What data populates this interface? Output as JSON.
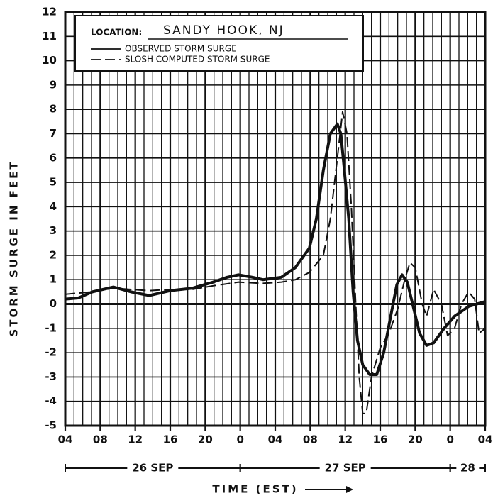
{
  "chart_data": {
    "type": "line",
    "legend": {
      "location_label": "LOCATION:",
      "location": "SANDY HOOK, NJ"
    },
    "xlabel": "TIME (EST)",
    "ylabel": "STORM SURGE IN FEET",
    "xlim": [
      0,
      48
    ],
    "ylim": [
      -5,
      12
    ],
    "xticks": [
      {
        "value": 0,
        "label": "04"
      },
      {
        "value": 4,
        "label": "08"
      },
      {
        "value": 8,
        "label": "12"
      },
      {
        "value": 12,
        "label": "16"
      },
      {
        "value": 16,
        "label": "20"
      },
      {
        "value": 20,
        "label": "0"
      },
      {
        "value": 24,
        "label": "04"
      },
      {
        "value": 28,
        "label": "08"
      },
      {
        "value": 32,
        "label": "12"
      },
      {
        "value": 36,
        "label": "16"
      },
      {
        "value": 40,
        "label": "20"
      },
      {
        "value": 44,
        "label": "0"
      },
      {
        "value": 48,
        "label": "04"
      }
    ],
    "xminorticks": [
      1,
      2,
      3,
      5,
      6,
      7,
      9,
      10,
      11,
      13,
      14,
      15,
      17,
      18,
      19,
      21,
      22,
      23,
      25,
      26,
      27,
      29,
      30,
      31,
      33,
      34,
      35,
      37,
      38,
      39,
      41,
      42,
      43,
      45,
      46,
      47
    ],
    "yticks": [
      -5,
      -4,
      -3,
      -2,
      -1,
      0,
      1,
      2,
      3,
      4,
      5,
      6,
      7,
      8,
      9,
      10,
      11,
      12
    ],
    "grid": true,
    "date_spans": [
      {
        "label": "26 SEP",
        "from": 0,
        "to": 20
      },
      {
        "label": "27 SEP",
        "from": 20,
        "to": 44
      },
      {
        "label": "28",
        "from": 44,
        "to": 48
      }
    ],
    "series": [
      {
        "name": "OBSERVED STORM SURGE",
        "color": "#111111",
        "dash": false,
        "x": [
          0,
          1.5,
          3.1,
          5.5,
          7.5,
          9.6,
          12.0,
          14.5,
          16.9,
          18.5,
          19.8,
          21.4,
          22.6,
          24.7,
          26.3,
          27.9,
          28.7,
          29.5,
          30.3,
          31.1,
          31.5,
          31.9,
          32.4,
          32.9,
          33.4,
          34.0,
          34.8,
          35.6,
          36.4,
          37.2,
          37.9,
          38.5,
          39.1,
          39.7,
          40.5,
          41.3,
          42.1,
          43.3,
          44.5,
          46.1,
          48
        ],
        "values": [
          0.2,
          0.25,
          0.5,
          0.7,
          0.5,
          0.35,
          0.55,
          0.65,
          0.9,
          1.1,
          1.2,
          1.1,
          1.0,
          1.1,
          1.5,
          2.3,
          3.5,
          5.5,
          7.0,
          7.4,
          7.0,
          5.5,
          3.5,
          0.5,
          -1.5,
          -2.5,
          -2.9,
          -2.9,
          -2.0,
          -0.5,
          0.8,
          1.2,
          0.9,
          0,
          -1.2,
          -1.7,
          -1.6,
          -1.0,
          -0.5,
          -0.1,
          0.1
        ]
      },
      {
        "name": "SLOSH COMPUTED STORM SURGE",
        "color": "#111111",
        "dash": true,
        "x": [
          0,
          1.5,
          3.1,
          5.5,
          7.5,
          9.6,
          12,
          14.5,
          16.9,
          19.8,
          22.6,
          24.7,
          26.3,
          27.9,
          29.5,
          30.3,
          31.1,
          31.7,
          32.2,
          32.7,
          33.2,
          33.6,
          34.0,
          34.4,
          35.0,
          36.0,
          37.0,
          38.0,
          38.8,
          39.4,
          40.0,
          40.8,
          41.3,
          42.1,
          43.0,
          43.7,
          44.5,
          45.3,
          46.1,
          46.8,
          47.3,
          48
        ],
        "values": [
          0.4,
          0.45,
          0.5,
          0.65,
          0.6,
          0.55,
          0.6,
          0.6,
          0.75,
          0.9,
          0.85,
          0.9,
          1.0,
          1.3,
          2.0,
          3.5,
          6.0,
          7.9,
          7.0,
          4.0,
          0,
          -3.0,
          -4.5,
          -4.5,
          -3.0,
          -1.8,
          -1.2,
          -0.2,
          1.0,
          1.7,
          1.5,
          0,
          -0.5,
          0.6,
          0,
          -1.3,
          -1.0,
          0,
          0.5,
          0.2,
          -1.2,
          -1.0
        ]
      }
    ]
  }
}
